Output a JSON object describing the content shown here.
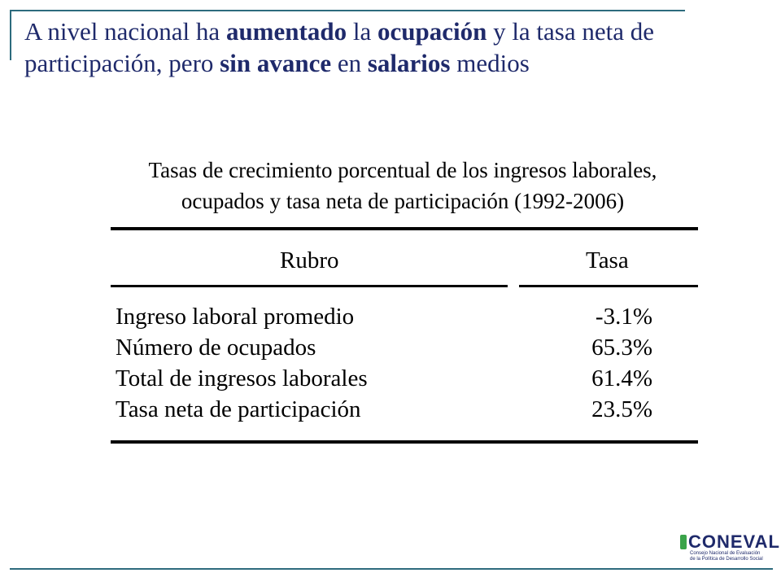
{
  "headline": {
    "p1": "A nivel nacional ha ",
    "b1": "aumentado",
    "p2": " la ",
    "b2": "ocupación",
    "p3": " y la tasa neta de participación, pero ",
    "b3": "sin avance",
    "p4": " en  ",
    "b4": "salarios",
    "p5": " medios"
  },
  "table": {
    "title_line1": "Tasas de crecimiento porcentual de los ingresos laborales,",
    "title_line2": "ocupados y tasa neta de participación (1992-2006)",
    "col_rubro": "Rubro",
    "col_tasa": "Tasa",
    "rows": [
      {
        "label": "Ingreso laboral promedio",
        "value": "-3.1%"
      },
      {
        "label": "Número de ocupados",
        "value": "65.3%"
      },
      {
        "label": "Total de ingresos laborales",
        "value": "61.4%"
      },
      {
        "label": "Tasa neta de participación",
        "value": "23.5%"
      }
    ]
  },
  "logo": {
    "name": "CONEVAL",
    "subtitle_line1": "Consejo Nacional de Evaluación",
    "subtitle_line2": "de la Política de Desarrollo Social"
  }
}
